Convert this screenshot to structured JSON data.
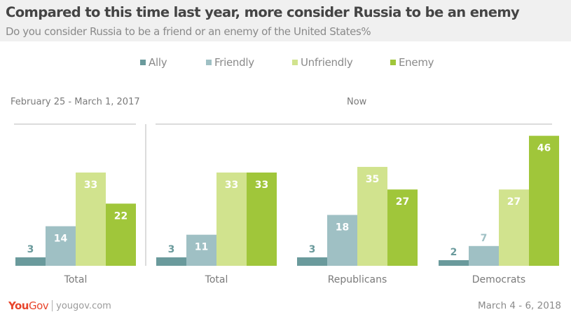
{
  "header": {
    "title": "Compared to this time last year, more consider Russia to be an enemy",
    "subtitle": "Do you consider Russia to be a friend or an enemy of the United States%"
  },
  "legend": [
    {
      "label": "Ally",
      "color": "#6a9a9c"
    },
    {
      "label": "Friendly",
      "color": "#9fc0c4"
    },
    {
      "label": "Unfriendly",
      "color": "#d1e38e"
    },
    {
      "label": "Enemy",
      "color": "#a0c63a"
    }
  ],
  "panels": [
    {
      "title": "February 25 - March 1, 2017"
    },
    {
      "title": "Now"
    }
  ],
  "footer": {
    "brand_you": "You",
    "brand_gov": "Gov",
    "url": "yougov.com",
    "date": "March 4 - 6, 2018"
  },
  "chart_data": {
    "type": "bar",
    "title": "Compared to this time last year, more consider Russia to be an enemy",
    "subtitle": "Do you consider Russia to be a friend or an enemy of the United States%",
    "xlabel": "",
    "ylabel": "",
    "ylim": [
      0,
      50
    ],
    "grid": false,
    "legend_position": "top-center",
    "series_names": [
      "Ally",
      "Friendly",
      "Unfriendly",
      "Enemy"
    ],
    "series_colors": [
      "#6a9a9c",
      "#9fc0c4",
      "#d1e38e",
      "#a0c63a"
    ],
    "groups": [
      {
        "panel": "February 25 - March 1, 2017",
        "category": "Total",
        "values": [
          3,
          14,
          33,
          22
        ]
      },
      {
        "panel": "Now",
        "category": "Total",
        "values": [
          3,
          11,
          33,
          33
        ]
      },
      {
        "panel": "Now",
        "category": "Republicans",
        "values": [
          3,
          18,
          35,
          27
        ]
      },
      {
        "panel": "Now",
        "category": "Democrats",
        "values": [
          2,
          7,
          27,
          46
        ]
      }
    ]
  }
}
